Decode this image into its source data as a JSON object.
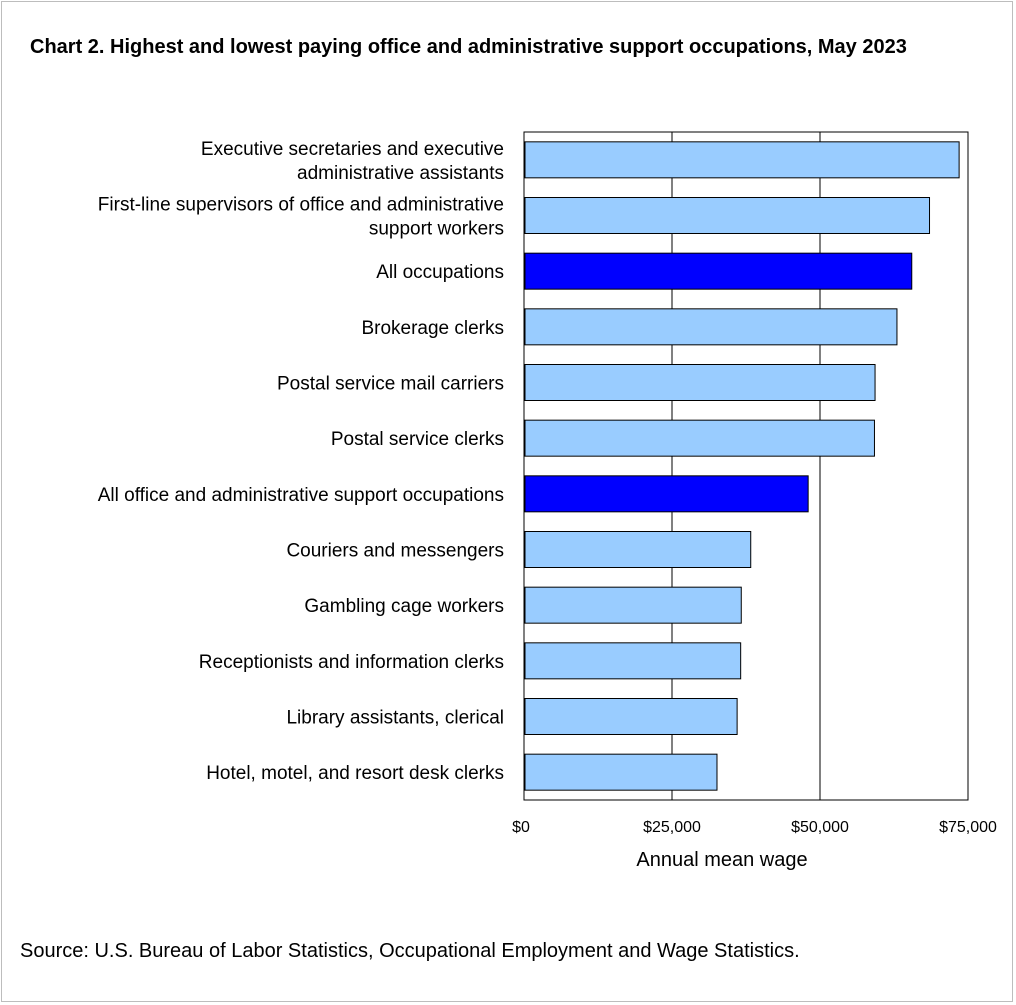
{
  "title": "Chart 2. Highest and lowest paying office and administrative support occupations, May 2023",
  "source": "Source: U.S. Bureau of Labor Statistics, Occupational Employment and Wage Statistics.",
  "colors": {
    "bar": "#99ccff",
    "highlight": "#0000ff",
    "edge": "#000000",
    "grid": "#000000"
  },
  "chart_data": {
    "type": "bar",
    "orientation": "horizontal",
    "title": "Chart 2. Highest and lowest paying office and administrative support occupations, May 2023",
    "xlabel": "Annual mean wage",
    "ylabel": "",
    "xlim": [
      0,
      75000
    ],
    "grid": true,
    "x_ticks": [
      0,
      25000,
      50000,
      75000
    ],
    "x_tick_labels": [
      "$0",
      "$25,000",
      "$50,000",
      "$75,000"
    ],
    "categories": [
      [
        "Executive secretaries and executive",
        "administrative assistants"
      ],
      [
        "First-line supervisors of office and administrative",
        "support workers"
      ],
      [
        "All occupations"
      ],
      [
        "Brokerage clerks"
      ],
      [
        "Postal service mail carriers"
      ],
      [
        "Postal service clerks"
      ],
      [
        "All office and administrative support occupations"
      ],
      [
        "Couriers and messengers"
      ],
      [
        "Gambling cage workers"
      ],
      [
        "Receptionists and information clerks"
      ],
      [
        "Library assistants, clerical"
      ],
      [
        "Hotel, motel, and resort desk clerks"
      ]
    ],
    "values": [
      73500,
      68500,
      65500,
      63000,
      59300,
      59200,
      48000,
      38300,
      36700,
      36600,
      36000,
      32600
    ],
    "highlighted": [
      false,
      false,
      true,
      false,
      false,
      false,
      true,
      false,
      false,
      false,
      false,
      false
    ]
  }
}
